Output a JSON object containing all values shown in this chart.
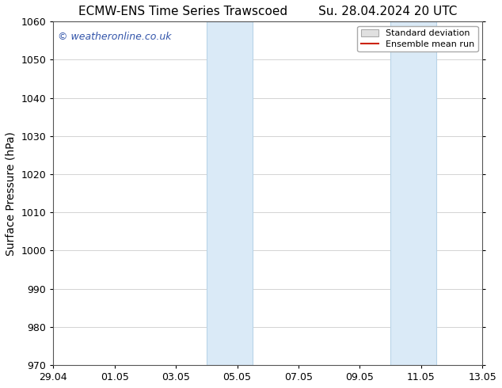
{
  "title": "ECMW-ENS Time Series Trawscoed        Su. 28.04.2024 20 UTC",
  "ylabel": "Surface Pressure (hPa)",
  "ylim": [
    970,
    1060
  ],
  "yticks": [
    970,
    980,
    990,
    1000,
    1010,
    1020,
    1030,
    1040,
    1050,
    1060
  ],
  "xtick_labels": [
    "29.04",
    "01.05",
    "03.05",
    "05.05",
    "07.05",
    "09.05",
    "11.05",
    "13.05"
  ],
  "xtick_positions": [
    0,
    2,
    4,
    6,
    8,
    10,
    12,
    14
  ],
  "shaded_regions": [
    {
      "x_start": 5.0,
      "x_end": 6.5
    },
    {
      "x_start": 11.0,
      "x_end": 12.5
    }
  ],
  "shaded_color": "#daeaf7",
  "shaded_edge_color": "#b8d4e8",
  "watermark_text": "© weatheronline.co.uk",
  "watermark_color": "#3355aa",
  "legend_std_label": "Standard deviation",
  "legend_mean_label": "Ensemble mean run",
  "legend_std_facecolor": "#e0e0e0",
  "legend_std_edgecolor": "#aaaaaa",
  "legend_mean_color": "#cc2200",
  "background_color": "#ffffff",
  "grid_color": "#cccccc",
  "spine_color": "#555555",
  "title_fontsize": 11,
  "ylabel_fontsize": 10,
  "tick_fontsize": 9,
  "watermark_fontsize": 9,
  "legend_fontsize": 8
}
